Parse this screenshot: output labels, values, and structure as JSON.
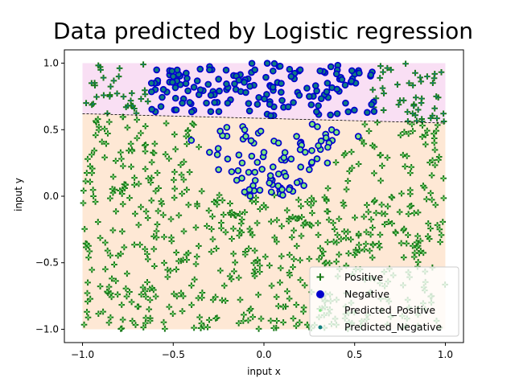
{
  "chart_data": {
    "type": "scatter",
    "title": "Data predicted by Logistic regression",
    "xlabel": "input x",
    "ylabel": "input y",
    "xlim": [
      -1.1,
      1.1
    ],
    "ylim": [
      -1.1,
      1.1
    ],
    "xticks": [
      -1.0,
      -0.5,
      0.0,
      0.5,
      1.0
    ],
    "xtick_labels": [
      "−1.0",
      "−0.5",
      "0.0",
      "0.5",
      "1.0"
    ],
    "yticks": [
      -1.0,
      -0.5,
      0.0,
      0.5,
      1.0
    ],
    "ytick_labels": [
      "−1.0",
      "−0.5",
      "0.0",
      "0.5",
      "1.0"
    ],
    "grid": false,
    "legend_position": "bottom-right",
    "decision_boundary": {
      "x": [
        -1.0,
        1.0
      ],
      "y": [
        0.62,
        0.55
      ],
      "style": "dashed",
      "color": "#000000"
    },
    "regions": [
      {
        "name": "predicted-negative-region",
        "color": "#f2b8e6",
        "y_range": "above boundary to 1.0",
        "x_range": [
          -1.0,
          1.0
        ]
      },
      {
        "name": "predicted-positive-region",
        "color": "#fdd5b2",
        "y_range": "-1.0 to boundary",
        "x_range": [
          -1.0,
          1.0
        ]
      }
    ],
    "legend": [
      "Positive",
      "Negative",
      "Predicted_Positive",
      "Predicted_Negative"
    ],
    "series": [
      {
        "name": "Positive",
        "marker": "plus",
        "color": "#1a7a1a"
      },
      {
        "name": "Negative",
        "marker": "circle",
        "color": "#0000cc"
      },
      {
        "name": "Predicted_Positive",
        "marker": "dot",
        "color": "#7ce87c"
      },
      {
        "name": "Predicted_Negative",
        "marker": "dot",
        "color": "#0f7f7f"
      }
    ],
    "sample_points": {
      "negative_in_band": [
        [
          -0.62,
          0.85
        ],
        [
          -0.5,
          0.9
        ],
        [
          -0.35,
          0.8
        ],
        [
          -0.25,
          0.88
        ],
        [
          -0.1,
          0.78
        ],
        [
          0.05,
          0.82
        ],
        [
          0.15,
          0.9
        ],
        [
          0.25,
          0.75
        ],
        [
          0.35,
          0.85
        ],
        [
          0.45,
          0.7
        ],
        [
          -0.45,
          0.7
        ],
        [
          -0.2,
          0.7
        ],
        [
          0.1,
          0.72
        ],
        [
          0.3,
          0.68
        ],
        [
          -0.05,
          0.95
        ],
        [
          0.2,
          0.95
        ],
        [
          0.4,
          0.92
        ],
        [
          -0.3,
          0.95
        ]
      ],
      "negative_below": [
        [
          -0.4,
          0.42
        ],
        [
          -0.3,
          0.33
        ],
        [
          -0.25,
          0.2
        ],
        [
          -0.2,
          0.28
        ],
        [
          -0.15,
          0.12
        ],
        [
          -0.12,
          0.25
        ],
        [
          -0.08,
          0.05
        ],
        [
          -0.05,
          0.18
        ],
        [
          0.0,
          0.33
        ],
        [
          0.03,
          0.1
        ],
        [
          0.05,
          0.22
        ],
        [
          0.08,
          0.4
        ],
        [
          0.1,
          0.05
        ],
        [
          0.12,
          0.15
        ],
        [
          0.15,
          0.28
        ],
        [
          0.2,
          0.35
        ],
        [
          0.22,
          0.08
        ],
        [
          0.25,
          0.2
        ],
        [
          0.3,
          0.38
        ],
        [
          0.35,
          0.25
        ],
        [
          0.18,
          0.45
        ],
        [
          -0.1,
          0.45
        ],
        [
          0.4,
          0.48
        ],
        [
          0.52,
          0.45
        ]
      ],
      "positive_corner": [
        [
          -0.98,
          0.7
        ],
        [
          -0.95,
          0.85
        ],
        [
          -0.9,
          0.95
        ],
        [
          -0.85,
          0.75
        ],
        [
          -0.8,
          0.9
        ],
        [
          -0.75,
          0.68
        ],
        [
          0.6,
          0.8
        ],
        [
          0.7,
          0.95
        ],
        [
          0.75,
          0.72
        ],
        [
          0.8,
          0.85
        ],
        [
          0.85,
          0.65
        ],
        [
          0.9,
          0.9
        ],
        [
          0.95,
          0.75
        ]
      ]
    }
  }
}
